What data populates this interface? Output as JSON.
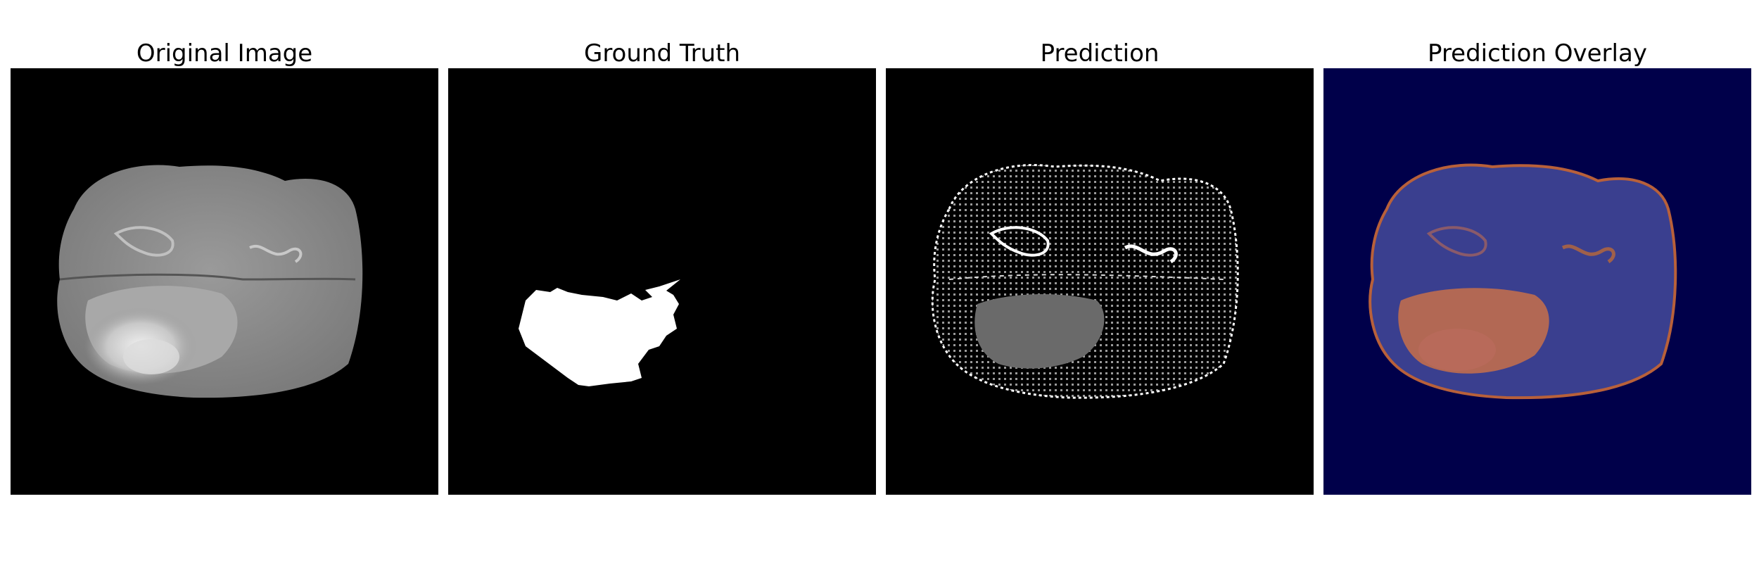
{
  "figure": {
    "panels": [
      {
        "title": "Original Image"
      },
      {
        "title": "Ground Truth"
      },
      {
        "title": "Prediction"
      },
      {
        "title": "Prediction Overlay"
      }
    ]
  },
  "colors": {
    "background": "#000000",
    "overlay_background": "#00004a",
    "tumor_mask": "#ffffff",
    "overlay_tumor": "#c8704a",
    "overlay_brain": "#3a3f8f"
  }
}
